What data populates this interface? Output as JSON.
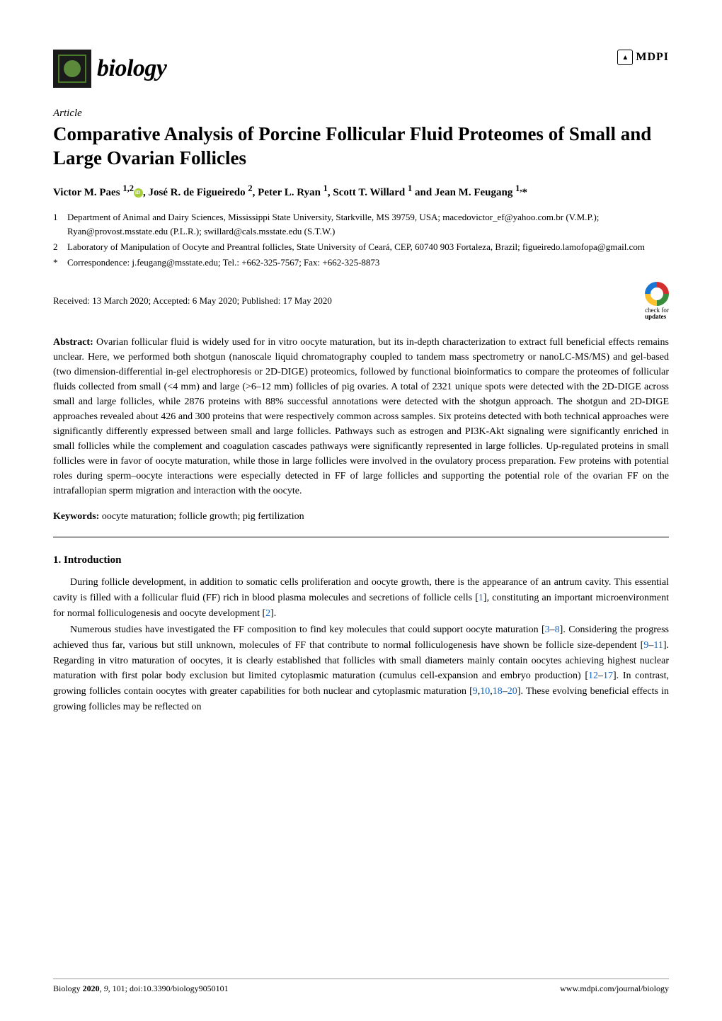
{
  "journal": {
    "name": "biology"
  },
  "publisher": {
    "name": "MDPI"
  },
  "article_type": "Article",
  "title": "Comparative Analysis of Porcine Follicular Fluid Proteomes of Small and Large Ovarian Follicles",
  "authors_html": "Victor M. Paes <sup>1,2</sup><span class='orcid' data-name='orcid-icon' data-interactable='false'></span>, José R. de Figueiredo <sup>2</sup>, Peter L. Ryan <sup>1</sup>, Scott T. Willard <sup>1</sup> and Jean M. Feugang <sup>1,</sup>*",
  "affiliations": [
    {
      "num": "1",
      "text": "Department of Animal and Dairy Sciences, Mississippi State University, Starkville, MS 39759, USA; macedovictor_ef@yahoo.com.br (V.M.P.); Ryan@provost.msstate.edu (P.L.R.); swillard@cals.msstate.edu (S.T.W.)"
    },
    {
      "num": "2",
      "text": "Laboratory of Manipulation of Oocyte and Preantral follicles, State University of Ceará, CEP, 60740 903 Fortaleza, Brazil; figueiredo.lamofopa@gmail.com"
    },
    {
      "num": "*",
      "text": "Correspondence: j.feugang@msstate.edu; Tel.: +662-325-7567; Fax: +662-325-8873"
    }
  ],
  "dates": "Received: 13 March 2020; Accepted: 6 May 2020; Published: 17 May 2020",
  "updates_label": "check for",
  "updates_bold": "updates",
  "abstract_label": "Abstract:",
  "abstract_text": " Ovarian follicular fluid is widely used for in vitro oocyte maturation, but its in-depth characterization to extract full beneficial effects remains unclear. Here, we performed both shotgun (nanoscale liquid chromatography coupled to tandem mass spectrometry or nanoLC-MS/MS) and gel-based (two dimension-differential in-gel electrophoresis or 2D-DIGE) proteomics, followed by functional bioinformatics to compare the proteomes of follicular fluids collected from small (<4 mm) and large (>6–12 mm) follicles of pig ovaries. A total of 2321 unique spots were detected with the 2D-DIGE across small and large follicles, while 2876 proteins with 88% successful annotations were detected with the shotgun approach. The shotgun and 2D-DIGE approaches revealed about 426 and 300 proteins that were respectively common across samples. Six proteins detected with both technical approaches were significantly differently expressed between small and large follicles. Pathways such as estrogen and PI3K-Akt signaling were significantly enriched in small follicles while the complement and coagulation cascades pathways were significantly represented in large follicles. Up-regulated proteins in small follicles were in favor of oocyte maturation, while those in large follicles were involved in the ovulatory process preparation. Few proteins with potential roles during sperm–oocyte interactions were especially detected in FF of large follicles and supporting the potential role of the ovarian FF on the intrafallopian sperm migration and interaction with the oocyte.",
  "keywords_label": "Keywords:",
  "keywords_text": " oocyte maturation; follicle growth; pig fertilization",
  "section1_title": "1. Introduction",
  "para1": "During follicle development, in addition to somatic cells proliferation and oocyte growth, there is the appearance of an antrum cavity. This essential cavity is filled with a follicular fluid (FF) rich in blood plasma molecules and secretions of follicle cells [<span class='ref'>1</span>], constituting an important microenvironment for normal folliculogenesis and oocyte development [<span class='ref'>2</span>].",
  "para2": "Numerous studies have investigated the FF composition to find key molecules that could support oocyte maturation [<span class='ref'>3</span>–<span class='ref'>8</span>]. Considering the progress achieved thus far, various but still unknown, molecules of FF that contribute to normal folliculogenesis have shown be follicle size-dependent [<span class='ref'>9</span>–<span class='ref'>11</span>]. Regarding in vitro maturation of oocytes, it is clearly established that follicles with small diameters mainly contain oocytes achieving highest nuclear maturation with first polar body exclusion but limited cytoplasmic maturation (cumulus cell-expansion and embryo production) [<span class='ref'>12</span>–<span class='ref'>17</span>]. In contrast, growing follicles contain oocytes with greater capabilities for both nuclear and cytoplasmic maturation [<span class='ref'>9</span>,<span class='ref'>10</span>,<span class='ref'>18</span>–<span class='ref'>20</span>]. These evolving beneficial effects in growing follicles may be reflected on",
  "footer_left": "Biology <b>2020</b>, <i>9</i>, 101; doi:10.3390/biology9050101",
  "footer_right": "www.mdpi.com/journal/biology"
}
